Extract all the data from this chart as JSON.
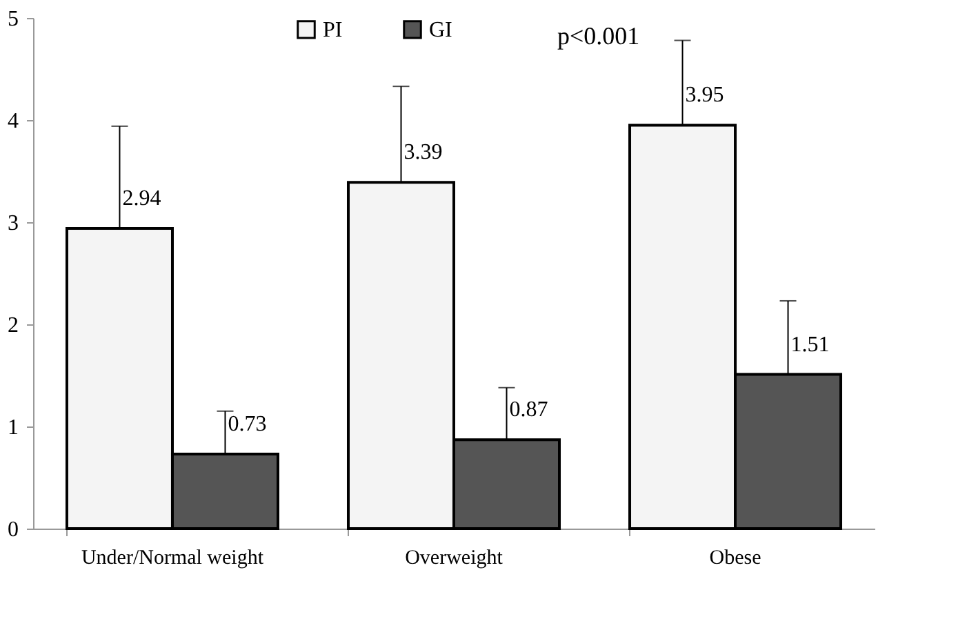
{
  "chart_data": {
    "type": "bar",
    "categories": [
      "Under/Normal  weight",
      "Overweight",
      "Obese"
    ],
    "series": [
      {
        "name": "PI",
        "color": "#f4f4f4",
        "values": [
          2.94,
          3.39,
          3.95
        ],
        "errors": [
          [
            2.94,
            3.94
          ],
          [
            3.39,
            4.33
          ],
          [
            3.95,
            4.78
          ]
        ]
      },
      {
        "name": "GI",
        "color": "#555555",
        "values": [
          0.73,
          0.87,
          1.51
        ],
        "errors": [
          [
            0.73,
            1.15
          ],
          [
            0.87,
            1.38
          ],
          [
            1.51,
            2.23
          ]
        ]
      }
    ],
    "ylim": [
      0,
      5
    ],
    "yticks": [
      0,
      1,
      2,
      3,
      4,
      5
    ],
    "data_labels": true,
    "grid": false,
    "legend": "top",
    "annotations": [
      {
        "text": "p<0.001"
      }
    ]
  }
}
